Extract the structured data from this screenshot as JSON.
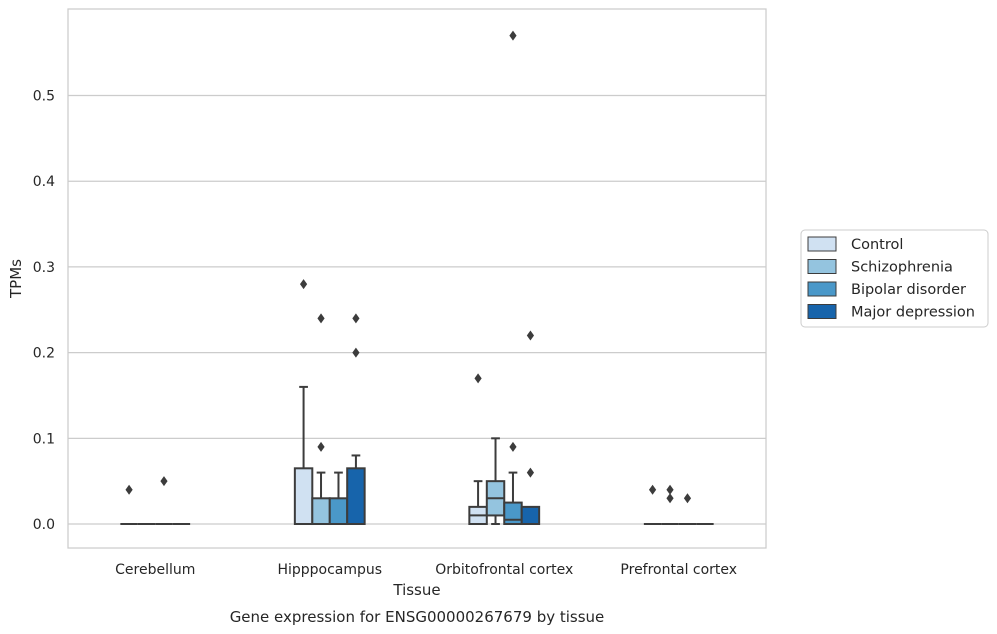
{
  "chart_data": {
    "type": "box",
    "title": "",
    "caption": "Gene expression for ENSG00000267679 by tissue",
    "xlabel": "Tissue",
    "ylabel": "TPMs",
    "ylim": [
      -0.028,
      0.601
    ],
    "yticks": [
      0.0,
      0.1,
      0.2,
      0.3,
      0.4,
      0.5
    ],
    "ytick_labels": [
      "0.0",
      "0.1",
      "0.2",
      "0.3",
      "0.4",
      "0.5"
    ],
    "grid": "horizontal",
    "legend_position": "right",
    "categories": [
      "Cerebellum",
      "Hipppocampus",
      "Orbitofrontal cortex",
      "Prefrontal cortex"
    ],
    "series": [
      {
        "name": "Control",
        "color": "#d0e1f2",
        "boxes": [
          {
            "q1": 0,
            "median": 0,
            "q3": 0,
            "whisker_low": 0,
            "whisker_high": 0,
            "outliers": [
              0.04
            ]
          },
          {
            "q1": 0,
            "median": 0,
            "q3": 0.065,
            "whisker_low": 0,
            "whisker_high": 0.16,
            "outliers": [
              0.28
            ]
          },
          {
            "q1": 0,
            "median": 0.01,
            "q3": 0.02,
            "whisker_low": 0,
            "whisker_high": 0.05,
            "outliers": [
              0.17
            ]
          },
          {
            "q1": 0,
            "median": 0,
            "q3": 0,
            "whisker_low": 0,
            "whisker_high": 0,
            "outliers": [
              0.04
            ]
          }
        ]
      },
      {
        "name": "Schizophrenia",
        "color": "#94c4df",
        "boxes": [
          {
            "q1": 0,
            "median": 0,
            "q3": 0,
            "whisker_low": 0,
            "whisker_high": 0,
            "outliers": []
          },
          {
            "q1": 0,
            "median": 0,
            "q3": 0.03,
            "whisker_low": 0,
            "whisker_high": 0.06,
            "outliers": [
              0.24,
              0.09
            ]
          },
          {
            "q1": 0.01,
            "median": 0.03,
            "q3": 0.05,
            "whisker_low": 0,
            "whisker_high": 0.1,
            "outliers": []
          },
          {
            "q1": 0,
            "median": 0,
            "q3": 0,
            "whisker_low": 0,
            "whisker_high": 0,
            "outliers": [
              0.04,
              0.03
            ]
          }
        ]
      },
      {
        "name": "Bipolar disorder",
        "color": "#4a98c9",
        "boxes": [
          {
            "q1": 0,
            "median": 0,
            "q3": 0,
            "whisker_low": 0,
            "whisker_high": 0,
            "outliers": [
              0.05
            ]
          },
          {
            "q1": 0,
            "median": 0,
            "q3": 0.03,
            "whisker_low": 0,
            "whisker_high": 0.06,
            "outliers": []
          },
          {
            "q1": 0,
            "median": 0.005,
            "q3": 0.025,
            "whisker_low": 0,
            "whisker_high": 0.06,
            "outliers": [
              0.09,
              0.57
            ]
          },
          {
            "q1": 0,
            "median": 0,
            "q3": 0,
            "whisker_low": 0,
            "whisker_high": 0,
            "outliers": [
              0.03
            ]
          }
        ]
      },
      {
        "name": "Major depression",
        "color": "#1764ab",
        "boxes": [
          {
            "q1": 0,
            "median": 0,
            "q3": 0,
            "whisker_low": 0,
            "whisker_high": 0,
            "outliers": []
          },
          {
            "q1": 0,
            "median": 0,
            "q3": 0.065,
            "whisker_low": 0,
            "whisker_high": 0.08,
            "outliers": [
              0.24,
              0.2
            ]
          },
          {
            "q1": 0,
            "median": 0,
            "q3": 0.02,
            "whisker_low": 0,
            "whisker_high": 0.02,
            "outliers": [
              0.22,
              0.06
            ]
          },
          {
            "q1": 0,
            "median": 0,
            "q3": 0,
            "whisker_low": 0,
            "whisker_high": 0,
            "outliers": []
          }
        ]
      }
    ]
  }
}
